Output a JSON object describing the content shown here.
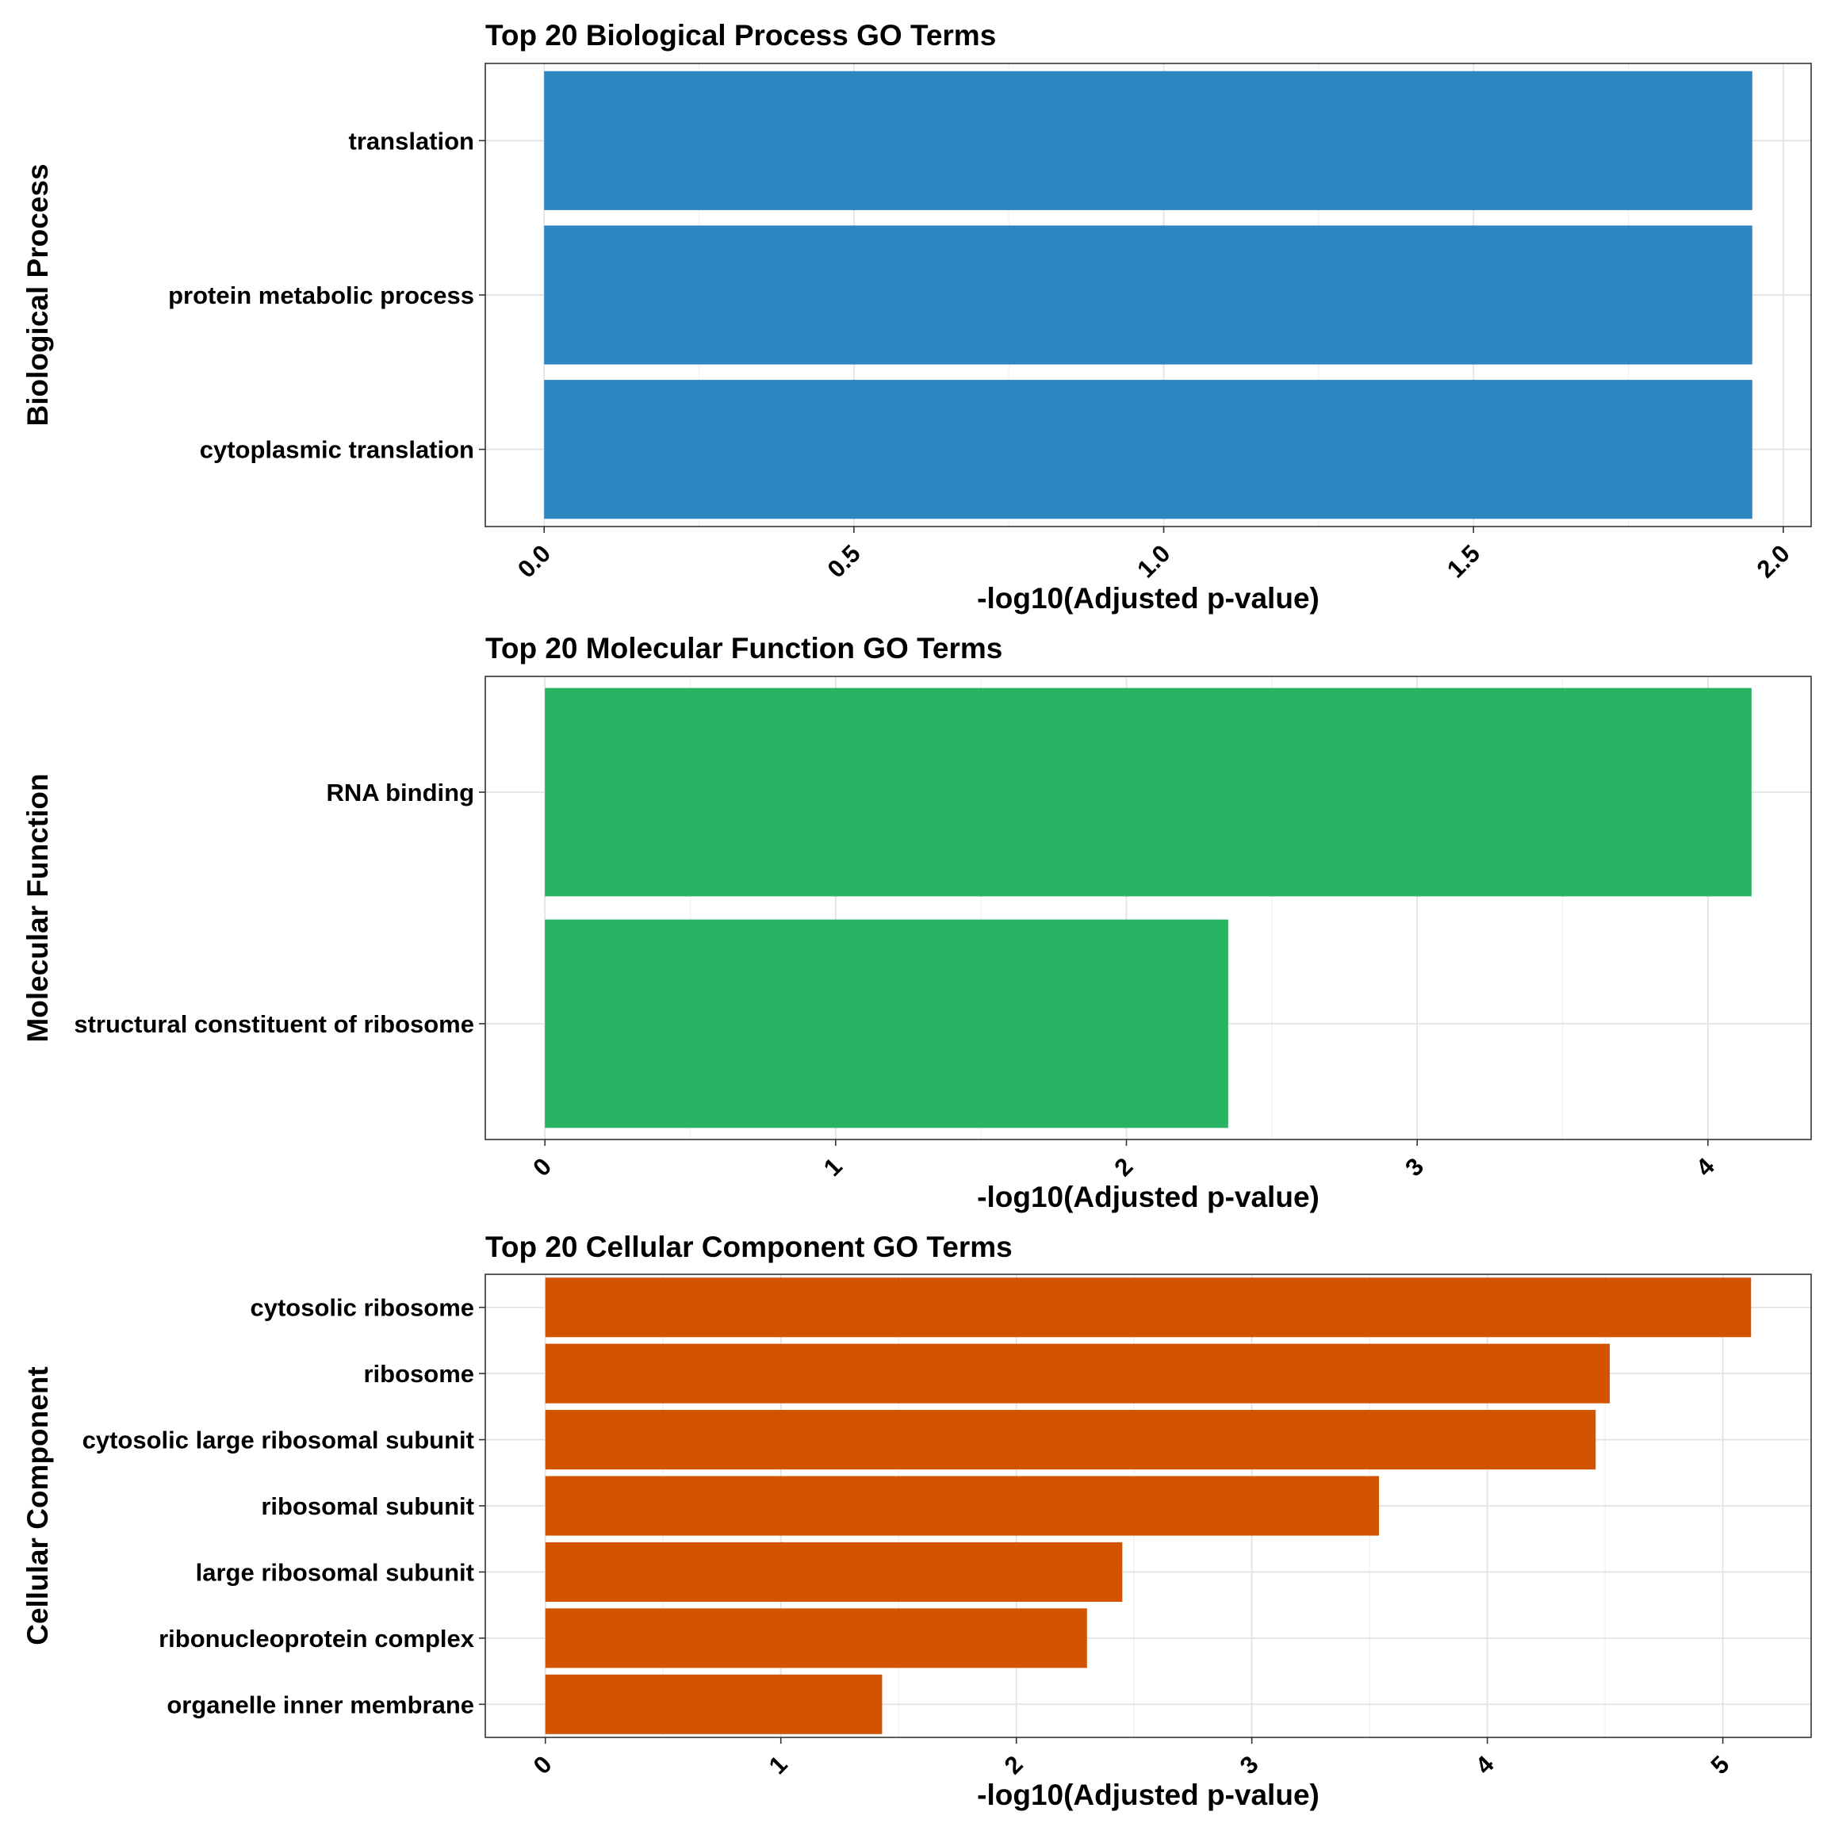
{
  "colors": {
    "bp": "#2e86c1",
    "mf": "#28b463",
    "cc": "#d35400"
  },
  "chart_data": [
    {
      "type": "bar",
      "orientation": "horizontal",
      "title": "Top 20 Biological Process GO Terms",
      "xlabel": "-log10(Adjusted p-value)",
      "ylabel": "Biological Process",
      "categories": [
        "translation",
        "protein metabolic process",
        "cytoplasmic translation"
      ],
      "values": [
        1.95,
        1.95,
        1.95
      ],
      "xlim": [
        -0.095,
        2.045
      ],
      "xticks": [
        0,
        0.5,
        1.0,
        1.5,
        2.0
      ],
      "xtick_labels": [
        "0.0",
        "0.5",
        "1.0",
        "1.5",
        "2.0"
      ],
      "grid": true,
      "color": "#2e86c1"
    },
    {
      "type": "bar",
      "orientation": "horizontal",
      "title": "Top 20 Molecular Function GO Terms",
      "xlabel": "-log10(Adjusted p-value)",
      "ylabel": "Molecular Function",
      "categories": [
        "RNA binding",
        "structural constituent of ribosome"
      ],
      "values": [
        4.15,
        2.35
      ],
      "xlim": [
        -0.205,
        4.355
      ],
      "xticks": [
        0,
        1,
        2,
        3,
        4
      ],
      "xtick_labels": [
        "0",
        "1",
        "2",
        "3",
        "4"
      ],
      "grid": true,
      "color": "#28b463"
    },
    {
      "type": "bar",
      "orientation": "horizontal",
      "title": "Top 20 Cellular Component GO Terms",
      "xlabel": "-log10(Adjusted p-value)",
      "ylabel": "Cellular Component",
      "categories": [
        "cytosolic ribosome",
        "ribosome",
        "cytosolic large ribosomal subunit",
        "ribosomal subunit",
        "large ribosomal subunit",
        "ribonucleoprotein complex",
        "organelle inner membrane"
      ],
      "values": [
        5.12,
        4.52,
        4.46,
        3.54,
        2.45,
        2.3,
        1.43
      ],
      "xlim": [
        -0.255,
        5.375
      ],
      "xticks": [
        0,
        1,
        2,
        3,
        4,
        5
      ],
      "xtick_labels": [
        "0",
        "1",
        "2",
        "3",
        "4",
        "5"
      ],
      "grid": true,
      "color": "#d35400"
    }
  ]
}
